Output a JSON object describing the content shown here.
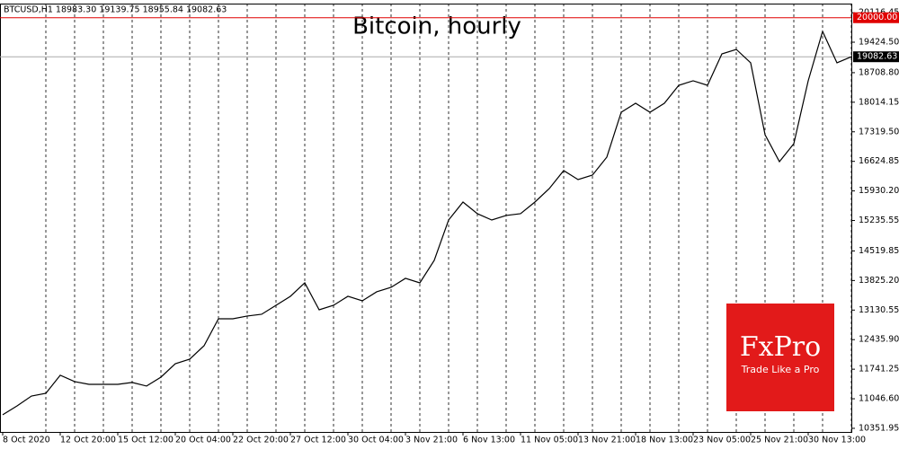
{
  "chart_data": {
    "type": "line",
    "title": "Bitcoin, hourly",
    "header": "BTCUSD,H1  18983.30 19139.75 18955.84 19082.63",
    "categories": [
      "8 Oct 2020",
      null,
      null,
      null,
      "12 Oct 20:00",
      null,
      null,
      null,
      "15 Oct 12:00",
      null,
      null,
      null,
      "20 Oct 04:00",
      null,
      null,
      null,
      "22 Oct 20:00",
      null,
      null,
      null,
      "27 Oct 12:00",
      null,
      null,
      null,
      "30 Oct 04:00",
      null,
      null,
      null,
      "3 Nov 21:00",
      null,
      null,
      null,
      "6 Nov 13:00",
      null,
      null,
      null,
      "11 Nov 05:00",
      null,
      null,
      null,
      "13 Nov 21:00",
      null,
      null,
      null,
      "18 Nov 13:00",
      null,
      null,
      null,
      "23 Nov 05:00",
      null,
      null,
      null,
      "25 Nov 21:00",
      null,
      null,
      null,
      "30 Nov 13:00",
      null,
      null,
      null
    ],
    "values": [
      10670,
      10880,
      11110,
      11175,
      11600,
      11450,
      11385,
      11385,
      11385,
      11430,
      11345,
      11555,
      11870,
      11977,
      12293,
      12926,
      12926,
      12990,
      13032,
      13243,
      13454,
      13770,
      13137,
      13243,
      13454,
      13348,
      13559,
      13665,
      13876,
      13770,
      14298,
      15247,
      15669,
      15395,
      15247,
      15353,
      15395,
      15669,
      15986,
      16408,
      16197,
      16302,
      16724,
      17779,
      17990,
      17779,
      17990,
      18412,
      18518,
      18412,
      19150,
      19256,
      18940,
      17251,
      16618,
      17040,
      18518,
      19678,
      18940,
      19082.63
    ],
    "color": "#000000",
    "ylim": [
      10267,
      20332
    ],
    "yticks": [
      {
        "value": 20116.45,
        "label": "20116.45"
      },
      {
        "value": 19424.5,
        "label": "19424.50"
      },
      {
        "value": 18708.8,
        "label": "18708.80"
      },
      {
        "value": 18014.15,
        "label": "18014.15"
      },
      {
        "value": 17319.5,
        "label": "17319.50"
      },
      {
        "value": 16624.85,
        "label": "16624.85"
      },
      {
        "value": 15930.2,
        "label": "15930.20"
      },
      {
        "value": 15235.55,
        "label": "15235.55"
      },
      {
        "value": 14519.85,
        "label": "14519.85"
      },
      {
        "value": 13825.2,
        "label": "13825.20"
      },
      {
        "value": 13130.55,
        "label": "13130.55"
      },
      {
        "value": 12435.9,
        "label": "12435.90"
      },
      {
        "value": 11741.25,
        "label": "11741.25"
      },
      {
        "value": 11046.6,
        "label": "11046.60"
      },
      {
        "value": 10351.95,
        "label": "10351.95"
      }
    ],
    "hlines": [
      {
        "value": 20000,
        "label": "20000.00",
        "color": "#e00000"
      },
      {
        "value": 19082.63,
        "label": "19082.63",
        "color": "#000000"
      }
    ],
    "grid": true,
    "logo": {
      "title": "FxPro",
      "tagline": "Trade Like a Pro",
      "color": "#e21a1a"
    }
  }
}
